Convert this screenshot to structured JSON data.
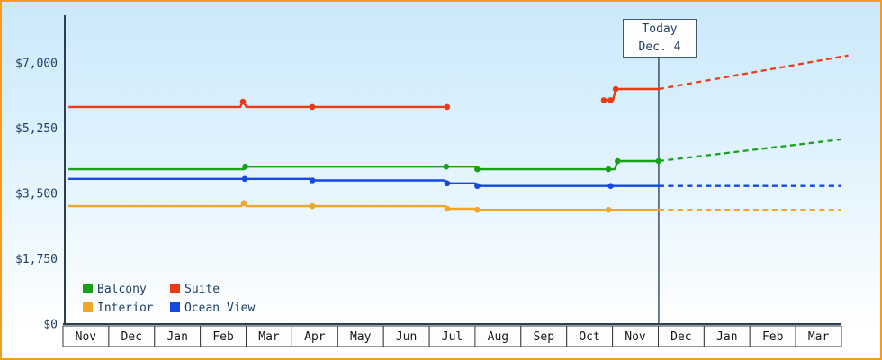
{
  "page": {
    "border_color": "#f89a1c",
    "background_top": "#cbe9fb",
    "background_bottom": "#ffffff",
    "axis_color": "#2b3e52"
  },
  "chart_data": {
    "type": "line",
    "title": "",
    "description": "Cruise cabin price history by category with dashed future price projection after today marker",
    "x_axis": {
      "unit": "month position; 0 = left edge of first Nov cell, each integer = one month column",
      "months": [
        "Nov",
        "Dec",
        "Jan",
        "Feb",
        "Mar",
        "Apr",
        "May",
        "Jun",
        "Jul",
        "Aug",
        "Sep",
        "Oct",
        "Nov",
        "Dec",
        "Jan",
        "Feb",
        "Mar"
      ]
    },
    "y_axis": {
      "min": 0,
      "max_tick": 7000,
      "ticks": [
        0,
        1750,
        3500,
        5250,
        7000
      ],
      "tick_labels": [
        "$0",
        "$1,750",
        "$3,500",
        "$5,250",
        "$7,000"
      ]
    },
    "today": {
      "label_line1": "Today",
      "label_line2": "Dec. 4",
      "x": 13.0
    },
    "legend": [
      {
        "name": "Balcony",
        "color": "#18a018"
      },
      {
        "name": "Suite",
        "color": "#ea3b16"
      },
      {
        "name": "Interior",
        "color": "#efa62b"
      },
      {
        "name": "Ocean View",
        "color": "#1748e2"
      }
    ],
    "series": [
      {
        "name": "Interior",
        "color": "#efa62b",
        "segments": [
          [
            [
              0.08,
              3160
            ],
            [
              3.86,
              3160
            ],
            [
              3.92,
              3240
            ],
            [
              3.98,
              3160
            ],
            [
              8.33,
              3160
            ],
            [
              8.42,
              3090
            ],
            [
              8.98,
              3090
            ],
            [
              9.08,
              3060
            ],
            [
              13.02,
              3060
            ]
          ]
        ],
        "markers": [
          [
            3.92,
            3240
          ],
          [
            5.42,
            3160
          ],
          [
            8.37,
            3090
          ],
          [
            9.03,
            3060
          ],
          [
            11.9,
            3060
          ]
        ],
        "projection": [
          [
            13.0,
            3060
          ],
          [
            17.0,
            3060
          ]
        ]
      },
      {
        "name": "Ocean View",
        "color": "#1748e2",
        "segments": [
          [
            [
              0.08,
              3890
            ],
            [
              5.36,
              3890
            ],
            [
              5.46,
              3850
            ],
            [
              8.3,
              3850
            ],
            [
              8.44,
              3770
            ],
            [
              8.98,
              3770
            ],
            [
              9.1,
              3700
            ],
            [
              13.02,
              3700
            ]
          ]
        ],
        "markers": [
          [
            3.94,
            3890
          ],
          [
            5.42,
            3850
          ],
          [
            8.37,
            3770
          ],
          [
            9.03,
            3700
          ],
          [
            11.95,
            3700
          ]
        ],
        "projection": [
          [
            13.0,
            3700
          ],
          [
            17.0,
            3700
          ]
        ]
      },
      {
        "name": "Balcony",
        "color": "#18a018",
        "segments": [
          [
            [
              0.08,
              4150
            ],
            [
              3.92,
              4150
            ],
            [
              3.98,
              4220
            ],
            [
              8.98,
              4220
            ],
            [
              9.08,
              4150
            ],
            [
              12.04,
              4150
            ],
            [
              12.1,
              4370
            ],
            [
              13.02,
              4370
            ]
          ]
        ],
        "markers": [
          [
            3.95,
            4220
          ],
          [
            8.35,
            4220
          ],
          [
            9.03,
            4150
          ],
          [
            11.9,
            4150
          ],
          [
            12.1,
            4370
          ],
          [
            13.0,
            4370
          ]
        ],
        "projection": [
          [
            13.0,
            4370
          ],
          [
            17.0,
            4950
          ]
        ]
      },
      {
        "name": "Suite",
        "color": "#ea3b16",
        "segments": [
          [
            [
              0.08,
              5820
            ],
            [
              3.84,
              5820
            ],
            [
              3.9,
              5960
            ],
            [
              3.98,
              5820
            ],
            [
              8.37,
              5820
            ]
          ],
          [
            [
              11.8,
              6000
            ],
            [
              12.0,
              6000
            ],
            [
              12.06,
              6300
            ],
            [
              13.02,
              6300
            ]
          ]
        ],
        "markers": [
          [
            3.9,
            5960
          ],
          [
            5.42,
            5820
          ],
          [
            8.37,
            5820
          ],
          [
            11.8,
            6000
          ],
          [
            11.95,
            6000
          ],
          [
            12.06,
            6300
          ]
        ],
        "projection": [
          [
            13.0,
            6300
          ],
          [
            17.15,
            7200
          ]
        ]
      }
    ]
  }
}
